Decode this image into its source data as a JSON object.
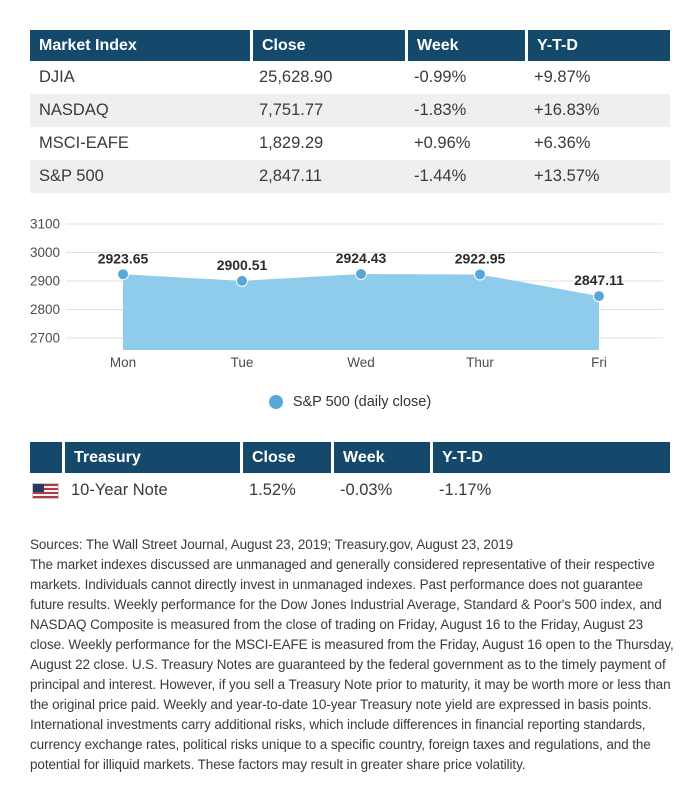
{
  "market_table": {
    "headers": [
      "Market Index",
      "Close",
      "Week",
      "Y-T-D"
    ],
    "rows": [
      {
        "name": "DJIA",
        "close": "25,628.90",
        "week": "-0.99%",
        "ytd": "+9.87%"
      },
      {
        "name": "NASDAQ",
        "close": "7,751.77",
        "week": "-1.83%",
        "ytd": "+16.83%"
      },
      {
        "name": "MSCI-EAFE",
        "close": "1,829.29",
        "week": "+0.96%",
        "ytd": "+6.36%"
      },
      {
        "name": "S&P 500",
        "close": "2,847.11",
        "week": "-1.44%",
        "ytd": "+13.57%"
      }
    ]
  },
  "chart_data": {
    "type": "area",
    "title": "",
    "x": [
      "Mon",
      "Tue",
      "Wed",
      "Thur",
      "Fri"
    ],
    "values": [
      2923.65,
      2900.51,
      2924.43,
      2922.95,
      2847.11
    ],
    "point_labels": [
      "2923.65",
      "2900.51",
      "2924.43",
      "2922.95",
      "2847.11"
    ],
    "yticks": [
      3100,
      3000,
      2900,
      2800,
      2700
    ],
    "ylim": [
      2660,
      3130
    ],
    "grid": true,
    "legend": "S&P 500 (daily close)",
    "legend_position": "bottom-center",
    "colors": {
      "area": "#8fcbea",
      "marker": "#58a7d9",
      "grid": "#e0e0e0",
      "tick_text": "#4c4c4c",
      "value_label": "#2b2b2b"
    }
  },
  "treasury_table": {
    "headers": [
      "",
      "Treasury",
      "Close",
      "Week",
      "Y-T-D"
    ],
    "rows": [
      {
        "flag": "us-flag-icon",
        "name": "10-Year Note",
        "close": "1.52%",
        "week": "-0.03%",
        "ytd": "-1.17%"
      }
    ]
  },
  "footer": {
    "sources": "Sources: The Wall Street Journal, August 23, 2019; Treasury.gov, August 23, 2019",
    "disclaimer": "The market indexes discussed are unmanaged and generally considered representative of their respective markets. Individuals cannot directly invest in unmanaged indexes. Past performance does not guarantee future results. Weekly performance for the Dow Jones Industrial Average, Standard & Poor's 500 index, and NASDAQ Composite is measured from the close of trading on Friday, August 16 to the Friday, August 23 close. Weekly performance for the MSCI-EAFE is measured from the Friday, August 16 open to the Thursday, August 22 close. U.S. Treasury Notes are guaranteed by the federal government as to the timely payment of principal and interest. However, if you sell a Treasury Note prior to maturity, it may be worth more or less than the original price paid. Weekly and year-to-date 10-year Treasury note yield are expressed in basis points. International investments carry additional risks, which include differences in financial reporting standards, currency exchange rates, political risks unique to a specific country, foreign taxes and regulations, and the potential for illiquid markets. These factors may result in greater share price volatility."
  },
  "colors": {
    "header_bg": "#14496b",
    "row_alt_bg": "#efefef",
    "body_text": "#3a3a3a"
  }
}
